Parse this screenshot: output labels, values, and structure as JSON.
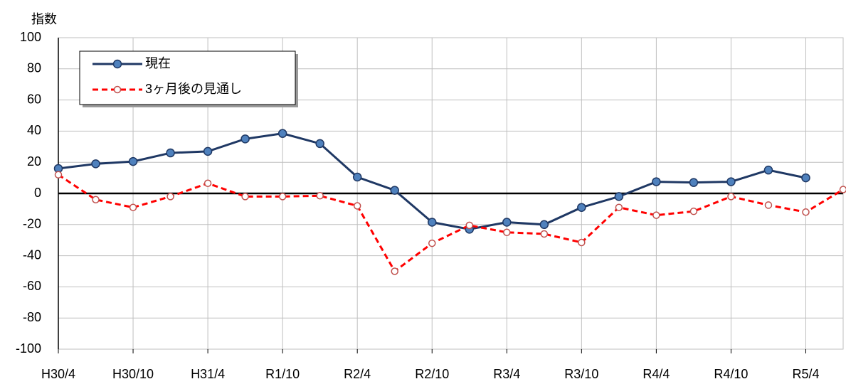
{
  "chart_data": {
    "type": "line",
    "y_axis_label": "指数",
    "categories": [
      "H30/4",
      null,
      "H30/10",
      null,
      "H31/4",
      null,
      "R1/10",
      null,
      "R2/4",
      null,
      "R2/10",
      null,
      "R3/4",
      null,
      "R3/10",
      null,
      "R4/4",
      null,
      "R4/10",
      null,
      "R5/4",
      null
    ],
    "series": [
      {
        "name": "現在",
        "color": "#1f3864",
        "marker_fill": "#4f81bd",
        "dash": false,
        "values": [
          16,
          19,
          20.5,
          26,
          27,
          35,
          38.5,
          32,
          10.5,
          2,
          -18.5,
          -23,
          -18.5,
          -20,
          -9,
          -2,
          7.5,
          7,
          7.5,
          15,
          10,
          null
        ]
      },
      {
        "name": "3ヶ月後の見通し",
        "color": "#ff0000",
        "marker_fill": "#ffffff",
        "dash": true,
        "values": [
          12,
          -4,
          -9,
          -2,
          6.5,
          -2,
          -2,
          -1.5,
          -8,
          -50,
          -32,
          -20.5,
          -25,
          -26,
          -31.5,
          -9,
          -14,
          -11.5,
          -2,
          -7.5,
          -12,
          2.5
        ]
      }
    ],
    "ylim": [
      -100,
      100
    ],
    "yticks": [
      -100,
      -80,
      -60,
      -40,
      -20,
      0,
      20,
      40,
      60,
      80,
      100
    ],
    "grid": true
  }
}
